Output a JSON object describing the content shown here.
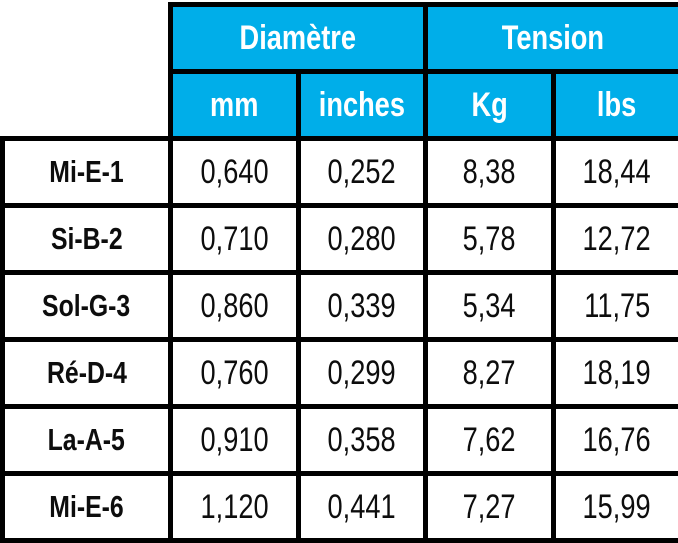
{
  "colors": {
    "header_bg": "#00AEE9",
    "header_text": "#FFFFFF",
    "grid_border": "#000000",
    "cell_bg": "#FFFFFF",
    "cell_text": "#0D0D0D"
  },
  "table": {
    "groups": [
      {
        "label": "Diamètre"
      },
      {
        "label": "Tension"
      }
    ],
    "columns": [
      {
        "label": "mm"
      },
      {
        "label": "inches"
      },
      {
        "label": "Kg"
      },
      {
        "label": "lbs"
      }
    ],
    "rows": [
      {
        "label": "Mi-E-1",
        "values": [
          "0,640",
          "0,252",
          "8,38",
          "18,44"
        ]
      },
      {
        "label": "Si-B-2",
        "values": [
          "0,710",
          "0,280",
          "5,78",
          "12,72"
        ]
      },
      {
        "label": "Sol-G-3",
        "values": [
          "0,860",
          "0,339",
          "5,34",
          "11,75"
        ]
      },
      {
        "label": "Ré-D-4",
        "values": [
          "0,760",
          "0,299",
          "8,27",
          "18,19"
        ]
      },
      {
        "label": "La-A-5",
        "values": [
          "0,910",
          "0,358",
          "7,62",
          "16,76"
        ]
      },
      {
        "label": "Mi-E-6",
        "values": [
          "1,120",
          "0,441",
          "7,27",
          "15,99"
        ]
      }
    ]
  },
  "chart_data": {
    "type": "table",
    "column_groups": [
      {
        "label": "Diamètre",
        "columns": [
          "mm",
          "inches"
        ]
      },
      {
        "label": "Tension",
        "columns": [
          "Kg",
          "lbs"
        ]
      }
    ],
    "columns": [
      "String",
      "mm",
      "inches",
      "Kg",
      "lbs"
    ],
    "rows": [
      [
        "Mi-E-1",
        "0,640",
        "0,252",
        "8,38",
        "18,44"
      ],
      [
        "Si-B-2",
        "0,710",
        "0,280",
        "5,78",
        "12,72"
      ],
      [
        "Sol-G-3",
        "0,860",
        "0,339",
        "5,34",
        "11,75"
      ],
      [
        "Ré-D-4",
        "0,760",
        "0,299",
        "8,27",
        "18,19"
      ],
      [
        "La-A-5",
        "0,910",
        "0,358",
        "7,62",
        "16,76"
      ],
      [
        "Mi-E-6",
        "1,120",
        "0,441",
        "7,27",
        "15,99"
      ]
    ]
  }
}
